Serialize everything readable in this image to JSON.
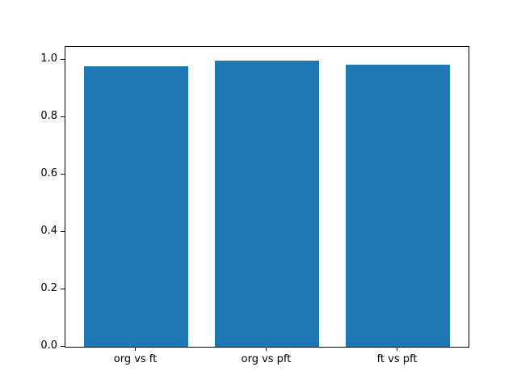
{
  "chart_data": {
    "type": "bar",
    "categories": [
      "org vs ft",
      "org vs pft",
      "ft vs pft"
    ],
    "values": [
      0.978,
      0.996,
      0.982
    ],
    "title": "",
    "xlabel": "",
    "ylabel": "",
    "xlim": [
      -0.54,
      2.54
    ],
    "ylim": [
      0,
      1.045
    ],
    "bar_width": 0.8,
    "yticks": [
      0.0,
      0.2,
      0.4,
      0.6,
      0.8,
      1.0
    ],
    "ytick_labels": [
      "0.0",
      "0.2",
      "0.4",
      "0.6",
      "0.8",
      "1.0"
    ],
    "bar_color": "#1f77b4",
    "spine_color": "#000000",
    "background_color": "#ffffff",
    "grid": false,
    "legend": null
  }
}
